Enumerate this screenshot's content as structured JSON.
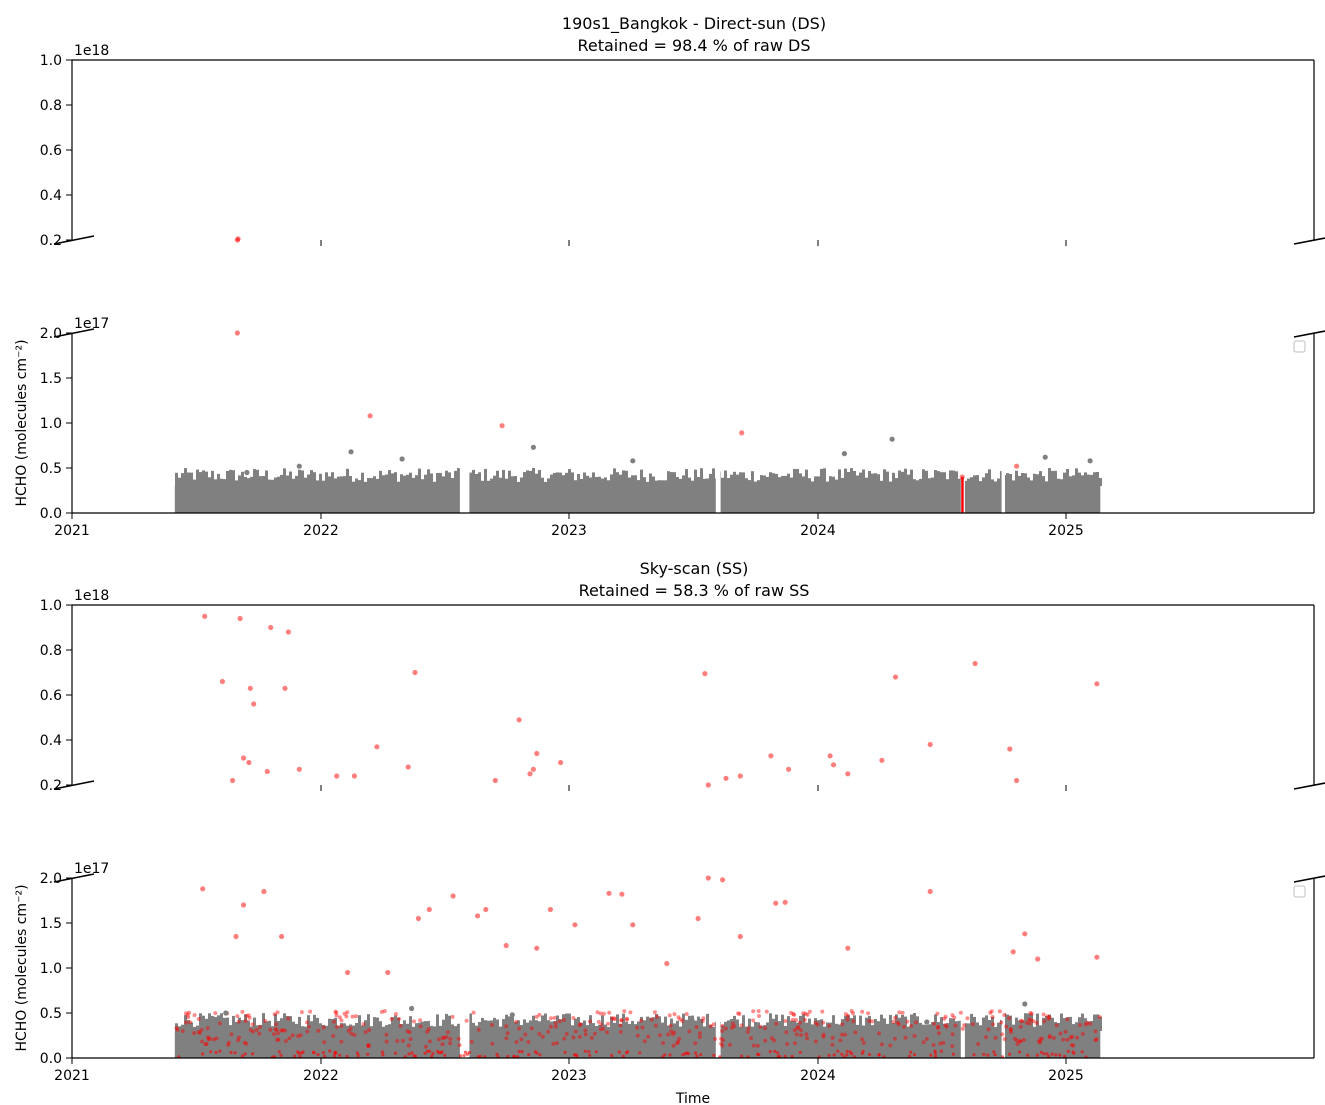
{
  "chart_data": [
    {
      "type": "scatter",
      "title": "190s1_Bangkok - Direct-sun (DS)",
      "subtitle": "Retained = 98.4 % of raw DS",
      "xlabel": "",
      "ylabel": "HCHO (molecules cm⁻²)",
      "x_range": [
        "2021-01-01",
        "2025-12-31"
      ],
      "x_ticks": [
        "2021",
        "2022",
        "2023",
        "2024",
        "2025"
      ],
      "broken_y_axis": true,
      "upper_panel": {
        "ylim": [
          2e+17,
          1e+18
        ],
        "y_ticks": [
          "0.2",
          "0.4",
          "0.6",
          "0.8",
          "1.0"
        ],
        "offset_label": "1e18"
      },
      "lower_panel": {
        "ylim": [
          0,
          2e+17
        ],
        "y_ticks": [
          "0.0",
          "0.5",
          "1.0",
          "1.5",
          "2.0"
        ],
        "offset_label": "1e17"
      },
      "data_window": [
        "2021-06-01",
        "2025-02-20"
      ],
      "gaps": [
        [
          "2022-07-25",
          "2022-08-08"
        ],
        [
          "2023-08-05",
          "2023-08-12"
        ],
        [
          "2024-07-30",
          "2024-08-05"
        ],
        [
          "2024-09-28",
          "2024-10-03"
        ]
      ],
      "series": [
        {
          "color": "#808080",
          "band_typical_max": 3e+16,
          "points": [
            {
              "x": "2021-06-05",
              "y": 1.2e+16
            },
            {
              "x": "2021-09-15",
              "y": 4.5e+16
            },
            {
              "x": "2021-12-01",
              "y": 5.2e+16
            },
            {
              "x": "2022-02-15",
              "y": 6.8e+16
            },
            {
              "x": "2022-05-01",
              "y": 6e+16
            },
            {
              "x": "2022-11-10",
              "y": 7.3e+16
            },
            {
              "x": "2023-04-05",
              "y": 5.8e+16
            },
            {
              "x": "2024-02-10",
              "y": 6.6e+16
            },
            {
              "x": "2024-04-20",
              "y": 8.2e+16
            },
            {
              "x": "2024-12-01",
              "y": 6.2e+16
            },
            {
              "x": "2025-02-05",
              "y": 5.8e+16
            }
          ]
        },
        {
          "color": "#ff0000",
          "points": [
            {
              "x": "2021-09-01",
              "y": 2e+17
            },
            {
              "x": "2021-09-02",
              "y": 2.05e+17
            },
            {
              "x": "2022-03-15",
              "y": 1.08e+17
            },
            {
              "x": "2022-09-25",
              "y": 9.7e+16
            },
            {
              "x": "2023-09-12",
              "y": 8.9e+16
            },
            {
              "x": "2024-08-01",
              "y": 4e+16
            },
            {
              "x": "2024-10-20",
              "y": 5.2e+16
            }
          ]
        }
      ]
    },
    {
      "type": "scatter",
      "title": "Sky-scan (SS)",
      "subtitle": "Retained = 58.3 % of raw SS",
      "xlabel": "Time",
      "ylabel": "HCHO (molecules cm⁻²)",
      "x_range": [
        "2021-01-01",
        "2025-12-31"
      ],
      "x_ticks": [
        "2021",
        "2022",
        "2023",
        "2024",
        "2025"
      ],
      "broken_y_axis": true,
      "upper_panel": {
        "ylim": [
          2e+17,
          1e+18
        ],
        "y_ticks": [
          "0.2",
          "0.4",
          "0.6",
          "0.8",
          "1.0"
        ],
        "offset_label": "1e18"
      },
      "lower_panel": {
        "ylim": [
          0,
          2e+17
        ],
        "y_ticks": [
          "0.0",
          "0.5",
          "1.0",
          "1.5",
          "2.0"
        ],
        "offset_label": "1e17"
      },
      "data_window": [
        "2021-06-01",
        "2025-02-20"
      ],
      "gaps": [
        [
          "2022-07-25",
          "2022-08-08"
        ],
        [
          "2023-08-05",
          "2023-08-12"
        ],
        [
          "2024-07-30",
          "2024-08-05"
        ],
        [
          "2024-09-28",
          "2024-10-03"
        ]
      ],
      "series": [
        {
          "color": "#808080",
          "band_typical_max": 3e+16,
          "points": [
            {
              "x": "2021-06-05",
              "y": 1e+16
            },
            {
              "x": "2021-08-15",
              "y": 5e+16
            },
            {
              "x": "2022-05-15",
              "y": 5.5e+16
            },
            {
              "x": "2022-10-10",
              "y": 4.8e+16
            },
            {
              "x": "2023-07-01",
              "y": 4.2e+16
            },
            {
              "x": "2024-06-10",
              "y": 4e+16
            },
            {
              "x": "2024-11-01",
              "y": 6e+16
            }
          ]
        },
        {
          "color": "#ff0000",
          "points": [
            {
              "x": "2021-07-15",
              "y": 9.5e+17
            },
            {
              "x": "2021-08-10",
              "y": 6.6e+17
            },
            {
              "x": "2021-09-05",
              "y": 9.4e+17
            },
            {
              "x": "2021-09-20",
              "y": 6.3e+17
            },
            {
              "x": "2021-09-25",
              "y": 5.6e+17
            },
            {
              "x": "2021-09-10",
              "y": 3.2e+17
            },
            {
              "x": "2021-09-18",
              "y": 3e+17
            },
            {
              "x": "2021-08-25",
              "y": 2.2e+17
            },
            {
              "x": "2021-10-20",
              "y": 9e+17
            },
            {
              "x": "2021-11-15",
              "y": 8.8e+17
            },
            {
              "x": "2021-11-10",
              "y": 6.3e+17
            },
            {
              "x": "2021-10-15",
              "y": 2.6e+17
            },
            {
              "x": "2021-12-01",
              "y": 2.7e+17
            },
            {
              "x": "2022-01-25",
              "y": 2.4e+17
            },
            {
              "x": "2022-02-20",
              "y": 2.4e+17
            },
            {
              "x": "2022-03-25",
              "y": 3.7e+17
            },
            {
              "x": "2022-05-10",
              "y": 2.8e+17
            },
            {
              "x": "2022-05-20",
              "y": 7e+17
            },
            {
              "x": "2022-09-15",
              "y": 2.2e+17
            },
            {
              "x": "2022-10-20",
              "y": 4.9e+17
            },
            {
              "x": "2022-11-15",
              "y": 3.4e+17
            },
            {
              "x": "2022-11-10",
              "y": 2.7e+17
            },
            {
              "x": "2022-11-05",
              "y": 2.5e+17
            },
            {
              "x": "2022-12-20",
              "y": 3e+17
            },
            {
              "x": "2023-07-20",
              "y": 6.95e+17
            },
            {
              "x": "2023-07-25",
              "y": 2e+17
            },
            {
              "x": "2023-08-20",
              "y": 2.3e+17
            },
            {
              "x": "2023-09-10",
              "y": 2.4e+17
            },
            {
              "x": "2023-10-25",
              "y": 3.3e+17
            },
            {
              "x": "2023-11-20",
              "y": 2.7e+17
            },
            {
              "x": "2024-01-20",
              "y": 3.3e+17
            },
            {
              "x": "2024-01-25",
              "y": 2.9e+17
            },
            {
              "x": "2024-02-15",
              "y": 2.5e+17
            },
            {
              "x": "2024-04-05",
              "y": 3.1e+17
            },
            {
              "x": "2024-04-25",
              "y": 6.8e+17
            },
            {
              "x": "2024-06-15",
              "y": 3.8e+17
            },
            {
              "x": "2024-08-20",
              "y": 7.4e+17
            },
            {
              "x": "2024-10-10",
              "y": 3.6e+17
            },
            {
              "x": "2024-10-20",
              "y": 2.2e+17
            },
            {
              "x": "2025-02-15",
              "y": 6.5e+17
            },
            {
              "x": "2021-07-12",
              "y": 1.88e+17
            },
            {
              "x": "2021-08-30",
              "y": 1.35e+17
            },
            {
              "x": "2021-09-10",
              "y": 1.7e+17
            },
            {
              "x": "2021-10-10",
              "y": 1.85e+17
            },
            {
              "x": "2021-11-05",
              "y": 1.35e+17
            },
            {
              "x": "2022-02-10",
              "y": 9.5e+16
            },
            {
              "x": "2022-04-10",
              "y": 9.5e+16
            },
            {
              "x": "2022-05-25",
              "y": 1.55e+17
            },
            {
              "x": "2022-06-10",
              "y": 1.65e+17
            },
            {
              "x": "2022-07-15",
              "y": 1.8e+17
            },
            {
              "x": "2022-08-20",
              "y": 1.58e+17
            },
            {
              "x": "2022-09-01",
              "y": 1.65e+17
            },
            {
              "x": "2022-10-01",
              "y": 1.25e+17
            },
            {
              "x": "2022-11-15",
              "y": 1.22e+17
            },
            {
              "x": "2022-12-05",
              "y": 1.65e+17
            },
            {
              "x": "2023-01-10",
              "y": 1.48e+17
            },
            {
              "x": "2023-03-01",
              "y": 1.83e+17
            },
            {
              "x": "2023-03-20",
              "y": 1.82e+17
            },
            {
              "x": "2023-04-05",
              "y": 1.48e+17
            },
            {
              "x": "2023-05-25",
              "y": 1.05e+17
            },
            {
              "x": "2023-07-10",
              "y": 1.55e+17
            },
            {
              "x": "2023-08-15",
              "y": 1.98e+17
            },
            {
              "x": "2023-09-10",
              "y": 1.35e+17
            },
            {
              "x": "2023-11-01",
              "y": 1.72e+17
            },
            {
              "x": "2023-11-15",
              "y": 1.73e+17
            },
            {
              "x": "2024-02-15",
              "y": 1.22e+17
            },
            {
              "x": "2024-06-15",
              "y": 1.85e+17
            },
            {
              "x": "2024-10-15",
              "y": 1.18e+17
            },
            {
              "x": "2024-11-01",
              "y": 1.38e+17
            },
            {
              "x": "2024-11-20",
              "y": 1.1e+17
            },
            {
              "x": "2025-02-15",
              "y": 1.12e+17
            }
          ]
        }
      ]
    }
  ]
}
